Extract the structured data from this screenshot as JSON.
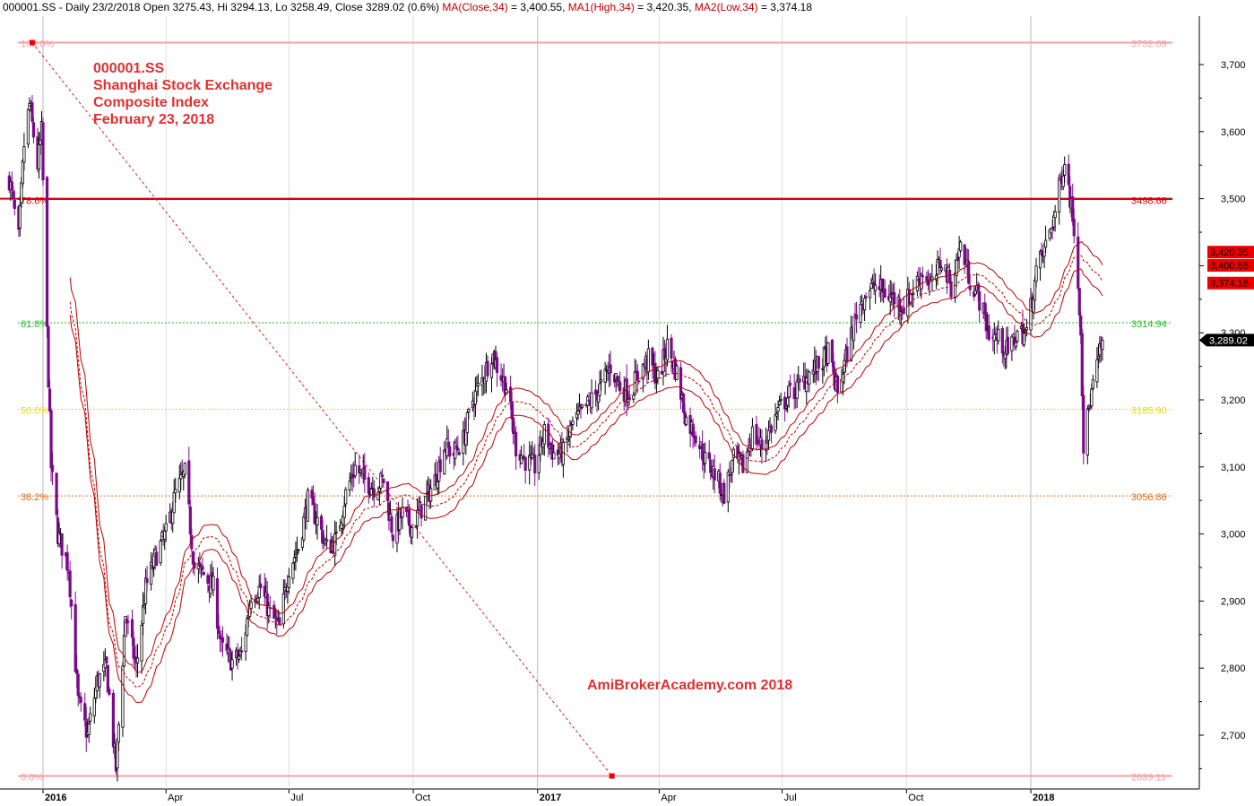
{
  "header": {
    "ticker_line": "000001.SS - Daily 23/2/2018 Open 3275.43, Hi 3294.13, Lo 3258.49, Close 3289.02 (0.6%)",
    "ma_close": "MA(Close,34)",
    "ma_close_val": " = 3,400.55,",
    "ma_high": "MA1(High,34)",
    "ma_high_val": " = 3,420.35,",
    "ma_low": "MA2(Low,34)",
    "ma_low_val": " = 3,374.18"
  },
  "annotation": {
    "line1": "000001.SS",
    "line2": "Shanghai Stock Exchange",
    "line3": "Composite Index",
    "line4": "February 23, 2018"
  },
  "watermark": "AmiBrokerAcademy.com  2018",
  "colors": {
    "price": "#7a0a8a",
    "price_dark": "#000000",
    "ma": "#c00000",
    "axis": "#000000",
    "fib_100": "#f4a0a8",
    "fib_786": "#d00000",
    "fib_618": "#22bb22",
    "fib_50": "#e8e000",
    "fib_382": "#e07020",
    "fib_0": "#f4a0a8"
  },
  "chart_data": {
    "type": "candlestick",
    "ylim": [
      2620,
      3760
    ],
    "yticks": [
      2700,
      2800,
      2900,
      3000,
      3100,
      3200,
      3300,
      3400,
      3500,
      3600,
      3700
    ],
    "ytick_labels": [
      "2,700",
      "2,800",
      "2,900",
      "3,000",
      "3,100",
      "3,200",
      "3,300",
      "3,400",
      "3,500",
      "3,600",
      "3,700"
    ],
    "x_labels": [
      {
        "label": "2016",
        "bold": true
      },
      {
        "label": "Apr",
        "bold": false
      },
      {
        "label": "Jul",
        "bold": false
      },
      {
        "label": "Oct",
        "bold": false
      },
      {
        "label": "2017",
        "bold": true
      },
      {
        "label": "Apr",
        "bold": false
      },
      {
        "label": "Jul",
        "bold": false
      },
      {
        "label": "Oct",
        "bold": false
      },
      {
        "label": "2018",
        "bold": true
      }
    ],
    "fib_levels": [
      {
        "pct": "100.0%",
        "value": 3732.69,
        "label": "3732.69",
        "key": "fib_100"
      },
      {
        "pct": "78.6%",
        "value": 3498.66,
        "label": "3498.66",
        "key": "fib_786"
      },
      {
        "pct": "61.8%",
        "value": 3314.94,
        "label": "3314.94",
        "key": "fib_618"
      },
      {
        "pct": "50.0%",
        "value": 3185.9,
        "label": "3185.90",
        "key": "fib_50"
      },
      {
        "pct": "38.2%",
        "value": 3056.86,
        "label": "3056.86",
        "key": "fib_382"
      },
      {
        "pct": "0.0%",
        "value": 2639.11,
        "label": "2639.11",
        "key": "fib_0"
      }
    ],
    "resistance_line": 3500,
    "last_labels": [
      {
        "value": 3420.35,
        "label": "3,420.35"
      },
      {
        "value": 3400.55,
        "label": "3,400.55"
      },
      {
        "value": 3374.18,
        "label": "3,374.18"
      }
    ],
    "close_label": {
      "value": 3289.02,
      "label": "3,289.02"
    },
    "trend_points": [
      {
        "date": "2015-12-24",
        "value": 3732.69
      },
      {
        "date": "2017-02-25",
        "value": 2639.11
      }
    ],
    "price_path": [
      [
        "2015-12-07",
        3530
      ],
      [
        "2015-12-14",
        3440
      ],
      [
        "2015-12-18",
        3580
      ],
      [
        "2015-12-22",
        3640
      ],
      [
        "2015-12-28",
        3550
      ],
      [
        "2015-12-31",
        3600
      ],
      [
        "2016-01-04",
        3300
      ],
      [
        "2016-01-07",
        3100
      ],
      [
        "2016-01-12",
        3000
      ],
      [
        "2016-01-20",
        2950
      ],
      [
        "2016-01-27",
        2750
      ],
      [
        "2016-02-03",
        2700
      ],
      [
        "2016-02-10",
        2780
      ],
      [
        "2016-02-17",
        2800
      ],
      [
        "2016-02-24",
        2650
      ],
      [
        "2016-03-02",
        2880
      ],
      [
        "2016-03-10",
        2800
      ],
      [
        "2016-03-17",
        2920
      ],
      [
        "2016-03-25",
        2970
      ],
      [
        "2016-04-01",
        3000
      ],
      [
        "2016-04-08",
        3060
      ],
      [
        "2016-04-15",
        3090
      ],
      [
        "2016-04-22",
        2950
      ],
      [
        "2016-04-29",
        2940
      ],
      [
        "2016-05-06",
        2920
      ],
      [
        "2016-05-12",
        2830
      ],
      [
        "2016-05-20",
        2810
      ],
      [
        "2016-05-27",
        2820
      ],
      [
        "2016-06-03",
        2910
      ],
      [
        "2016-06-10",
        2920
      ],
      [
        "2016-06-17",
        2880
      ],
      [
        "2016-06-24",
        2860
      ],
      [
        "2016-07-01",
        2950
      ],
      [
        "2016-07-08",
        2980
      ],
      [
        "2016-07-15",
        3050
      ],
      [
        "2016-07-22",
        3020
      ],
      [
        "2016-07-29",
        2980
      ],
      [
        "2016-08-05",
        2990
      ],
      [
        "2016-08-12",
        3060
      ],
      [
        "2016-08-19",
        3100
      ],
      [
        "2016-08-26",
        3080
      ],
      [
        "2016-09-02",
        3070
      ],
      [
        "2016-09-09",
        3080
      ],
      [
        "2016-09-16",
        3000
      ],
      [
        "2016-09-23",
        3030
      ],
      [
        "2016-09-30",
        3010
      ],
      [
        "2016-10-10",
        3050
      ],
      [
        "2016-10-17",
        3080
      ],
      [
        "2016-10-24",
        3130
      ],
      [
        "2016-10-31",
        3120
      ],
      [
        "2016-11-07",
        3140
      ],
      [
        "2016-11-14",
        3200
      ],
      [
        "2016-11-21",
        3230
      ],
      [
        "2016-11-28",
        3270
      ],
      [
        "2016-12-02",
        3250
      ],
      [
        "2016-12-09",
        3220
      ],
      [
        "2016-12-16",
        3130
      ],
      [
        "2016-12-23",
        3110
      ],
      [
        "2016-12-30",
        3100
      ],
      [
        "2017-01-06",
        3150
      ],
      [
        "2017-01-13",
        3120
      ],
      [
        "2017-01-20",
        3120
      ],
      [
        "2017-01-26",
        3160
      ],
      [
        "2017-02-10",
        3200
      ],
      [
        "2017-02-17",
        3220
      ],
      [
        "2017-02-24",
        3250
      ],
      [
        "2017-03-03",
        3220
      ],
      [
        "2017-03-10",
        3210
      ],
      [
        "2017-03-17",
        3240
      ],
      [
        "2017-03-24",
        3260
      ],
      [
        "2017-03-31",
        3230
      ],
      [
        "2017-04-07",
        3280
      ],
      [
        "2017-04-14",
        3240
      ],
      [
        "2017-04-21",
        3170
      ],
      [
        "2017-04-28",
        3150
      ],
      [
        "2017-05-05",
        3110
      ],
      [
        "2017-05-12",
        3090
      ],
      [
        "2017-05-19",
        3060
      ],
      [
        "2017-05-26",
        3110
      ],
      [
        "2017-06-02",
        3100
      ],
      [
        "2017-06-09",
        3150
      ],
      [
        "2017-06-16",
        3130
      ],
      [
        "2017-06-23",
        3160
      ],
      [
        "2017-06-30",
        3190
      ],
      [
        "2017-07-07",
        3210
      ],
      [
        "2017-07-14",
        3220
      ],
      [
        "2017-07-21",
        3240
      ],
      [
        "2017-07-28",
        3250
      ],
      [
        "2017-08-04",
        3270
      ],
      [
        "2017-08-11",
        3210
      ],
      [
        "2017-08-18",
        3270
      ],
      [
        "2017-08-25",
        3330
      ],
      [
        "2017-09-01",
        3360
      ],
      [
        "2017-09-08",
        3370
      ],
      [
        "2017-09-15",
        3360
      ],
      [
        "2017-09-22",
        3350
      ],
      [
        "2017-09-29",
        3340
      ],
      [
        "2017-10-13",
        3390
      ],
      [
        "2017-10-20",
        3370
      ],
      [
        "2017-10-27",
        3410
      ],
      [
        "2017-11-03",
        3370
      ],
      [
        "2017-11-10",
        3430
      ],
      [
        "2017-11-17",
        3380
      ],
      [
        "2017-11-24",
        3350
      ],
      [
        "2017-12-01",
        3300
      ],
      [
        "2017-12-08",
        3290
      ],
      [
        "2017-12-15",
        3270
      ],
      [
        "2017-12-22",
        3300
      ],
      [
        "2017-12-29",
        3300
      ],
      [
        "2018-01-05",
        3390
      ],
      [
        "2018-01-12",
        3430
      ],
      [
        "2018-01-19",
        3480
      ],
      [
        "2018-01-26",
        3560
      ],
      [
        "2018-02-02",
        3460
      ],
      [
        "2018-02-07",
        3310
      ],
      [
        "2018-02-09",
        3130
      ],
      [
        "2018-02-14",
        3200
      ],
      [
        "2018-02-23",
        3289
      ]
    ]
  }
}
